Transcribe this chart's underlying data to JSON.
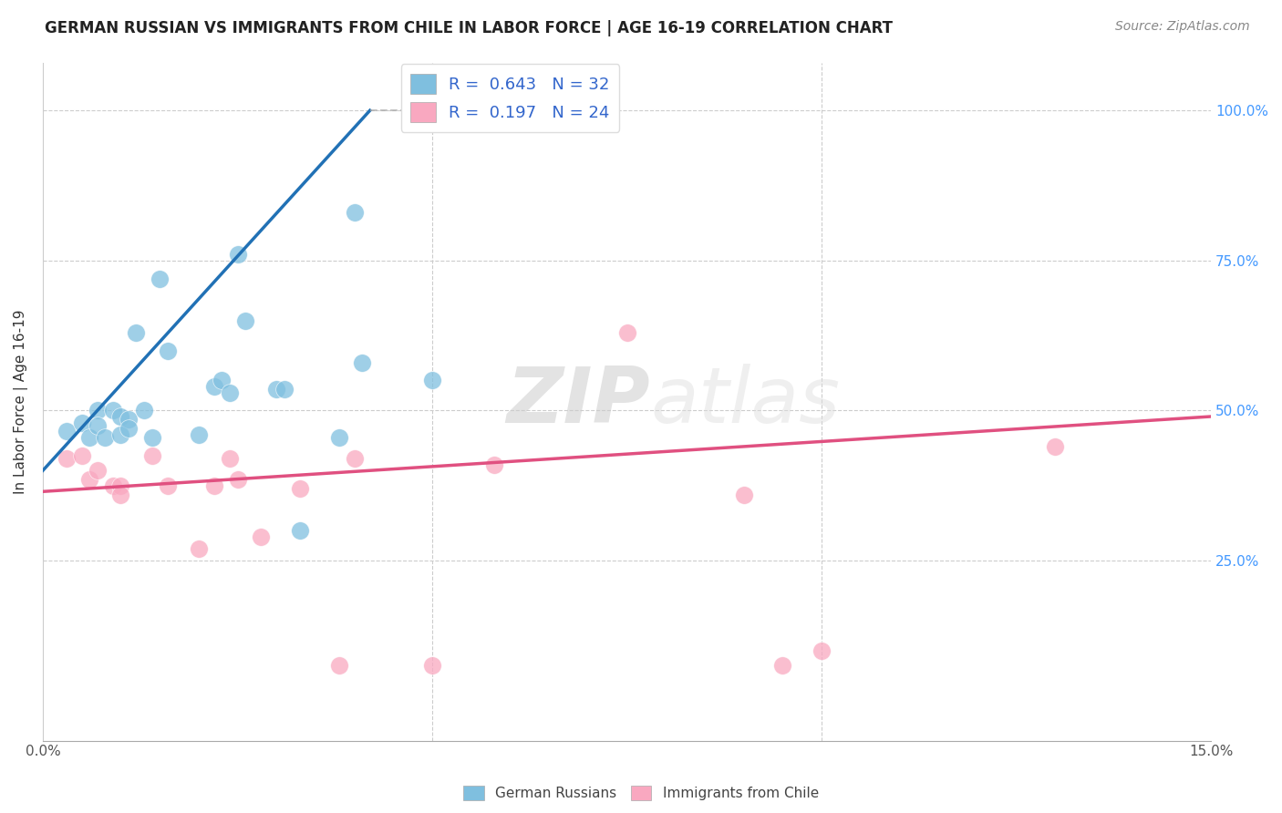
{
  "title": "GERMAN RUSSIAN VS IMMIGRANTS FROM CHILE IN LABOR FORCE | AGE 16-19 CORRELATION CHART",
  "source": "Source: ZipAtlas.com",
  "ylabel": "In Labor Force | Age 16-19",
  "xlim": [
    0.0,
    0.15
  ],
  "ylim": [
    -0.05,
    1.08
  ],
  "ytick_labels": [
    "25.0%",
    "50.0%",
    "75.0%",
    "100.0%"
  ],
  "ytick_positions": [
    0.25,
    0.5,
    0.75,
    1.0
  ],
  "blue_R": 0.643,
  "blue_N": 32,
  "pink_R": 0.197,
  "pink_N": 24,
  "blue_color": "#7fbfdf",
  "pink_color": "#f9a8c0",
  "blue_line_color": "#2171b5",
  "pink_line_color": "#e05080",
  "watermark_zip": "ZIP",
  "watermark_atlas": "atlas",
  "blue_scatter_x": [
    0.003,
    0.005,
    0.006,
    0.007,
    0.007,
    0.008,
    0.009,
    0.01,
    0.01,
    0.011,
    0.011,
    0.012,
    0.013,
    0.014,
    0.015,
    0.016,
    0.02,
    0.022,
    0.023,
    0.024,
    0.025,
    0.026,
    0.03,
    0.031,
    0.033,
    0.038,
    0.04,
    0.041,
    0.05,
    0.058,
    0.058,
    0.059
  ],
  "blue_scatter_y": [
    0.465,
    0.48,
    0.455,
    0.5,
    0.475,
    0.455,
    0.5,
    0.46,
    0.49,
    0.485,
    0.47,
    0.63,
    0.5,
    0.455,
    0.72,
    0.6,
    0.46,
    0.54,
    0.55,
    0.53,
    0.76,
    0.65,
    0.535,
    0.535,
    0.3,
    0.455,
    0.83,
    0.58,
    0.55,
    1.0,
    1.0,
    1.0
  ],
  "pink_scatter_x": [
    0.003,
    0.005,
    0.006,
    0.007,
    0.009,
    0.01,
    0.01,
    0.014,
    0.016,
    0.02,
    0.022,
    0.024,
    0.025,
    0.028,
    0.033,
    0.038,
    0.04,
    0.05,
    0.058,
    0.075,
    0.09,
    0.095,
    0.1,
    0.13
  ],
  "pink_scatter_y": [
    0.42,
    0.425,
    0.385,
    0.4,
    0.375,
    0.375,
    0.36,
    0.425,
    0.375,
    0.27,
    0.375,
    0.42,
    0.385,
    0.29,
    0.37,
    0.075,
    0.42,
    0.075,
    0.41,
    0.63,
    0.36,
    0.075,
    0.1,
    0.44
  ],
  "blue_line_x": [
    0.0,
    0.042
  ],
  "blue_line_y": [
    0.4,
    1.0
  ],
  "pink_line_x": [
    0.0,
    0.15
  ],
  "pink_line_y": [
    0.365,
    0.49
  ],
  "dashed_line_x": [
    0.042,
    0.065
  ],
  "dashed_line_y": [
    1.0,
    1.0
  ]
}
